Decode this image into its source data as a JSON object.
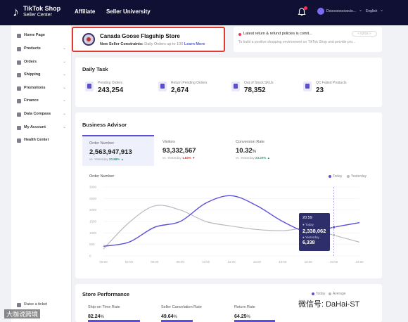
{
  "topbar": {
    "logo_line1": "TikTok Shop",
    "logo_line2": "Seller Center",
    "nav": [
      "Affiliate",
      "Seller University"
    ],
    "account_name": "Doooooooooocio...",
    "language": "English"
  },
  "sidebar": {
    "items": [
      {
        "label": "Home Page",
        "chevron": false
      },
      {
        "label": "Products",
        "chevron": true
      },
      {
        "label": "Orders",
        "chevron": true
      },
      {
        "label": "Shipping",
        "chevron": true
      },
      {
        "label": "Promotions",
        "chevron": true
      },
      {
        "label": "Finance",
        "chevron": true
      },
      {
        "label": "Data Compass",
        "chevron": true
      },
      {
        "label": "My Account",
        "chevron": true
      },
      {
        "label": "Health Center",
        "chevron": false
      }
    ],
    "raise_ticket": "Raise a ticket"
  },
  "shop": {
    "name": "Canada Goose Flagship Store",
    "constraint_prefix": "New Seller Constraints:",
    "constraint_text": " Daily Orders up to 100",
    "learn_more": "Learn More"
  },
  "news": {
    "title": "Latest return & refund policies is comit...",
    "subtitle": "To build a positive shopping environment on TikTok Shop and provide pro...",
    "pager": "< 02/15 >"
  },
  "daily_task": {
    "title": "Daily Task",
    "items": [
      {
        "label": "Pending Orders",
        "value": "243,254"
      },
      {
        "label": "Return Pending Orders",
        "value": "2,674"
      },
      {
        "label": "Out of Stock SKUs",
        "value": "78,352"
      },
      {
        "label": "QC Failed Products",
        "value": "23"
      }
    ]
  },
  "advisor": {
    "title": "Business Advisor",
    "metrics": [
      {
        "label": "Order Number",
        "value": "2,563,947,913",
        "unit": "",
        "cmp_label": "vs. Yesterday",
        "change": "20.88%",
        "trend": "up"
      },
      {
        "label": "Visitors",
        "value": "93,332,567",
        "unit": "",
        "cmp_label": "vs. Yesterday",
        "change": "1.84%",
        "trend": "down"
      },
      {
        "label": "Conversion Rate",
        "value": "10.32",
        "unit": "%",
        "cmp_label": "vs. Yesterday",
        "change": "23.20%",
        "trend": "up"
      }
    ],
    "chart_title": "Order Number",
    "legend": [
      "Today",
      "Yesterday"
    ],
    "tooltip": {
      "time": "20:59",
      "today_label": "Today",
      "today_value": "2,338,062",
      "yesterday_label": "Yesterday",
      "yesterday_value": "6,338"
    }
  },
  "chart_data": {
    "type": "line",
    "title": "Order Number",
    "x": [
      "00:00",
      "02:00",
      "06:00",
      "08:00",
      "10:00",
      "12:00",
      "14:00",
      "16:00",
      "18:00",
      "20:00",
      "24:00"
    ],
    "ylim": [
      0,
      3000
    ],
    "y_ticks": [
      "3000",
      "2500",
      "2000",
      "1500",
      "1000",
      "500",
      "0"
    ],
    "legend_position": "top-right",
    "series": [
      {
        "name": "Today",
        "color": "#5b4fd8",
        "values": [
          420,
          600,
          1250,
          1500,
          2300,
          2620,
          2180,
          1500,
          1050,
          1250,
          1450
        ]
      },
      {
        "name": "Yesterday",
        "color": "#b9b9c3",
        "values": [
          300,
          1450,
          2180,
          2000,
          1500,
          1300,
          1150,
          1100,
          1200,
          900,
          600
        ]
      }
    ]
  },
  "performance": {
    "title": "Store Performance",
    "legend": [
      "Today",
      "Average"
    ],
    "metrics": [
      {
        "label": "Ship-on Time Rate",
        "value": "82.24",
        "unit": "%",
        "fill": 0.82
      },
      {
        "label": "Seller Cancelation Rate",
        "value": "49.64",
        "unit": "%",
        "fill": 0.5
      },
      {
        "label": "Return Rate",
        "value": "64.25",
        "unit": "%",
        "fill": 0.64
      }
    ]
  },
  "watermark": {
    "left": "大咖说跨境",
    "right": "微信号: DaHai-ST"
  },
  "colors": {
    "topbar": "#0f1033",
    "accent": "#5b4fd8",
    "highlight_border": "#e23a2f",
    "up": "#20a47a",
    "down": "#e23a2f"
  }
}
